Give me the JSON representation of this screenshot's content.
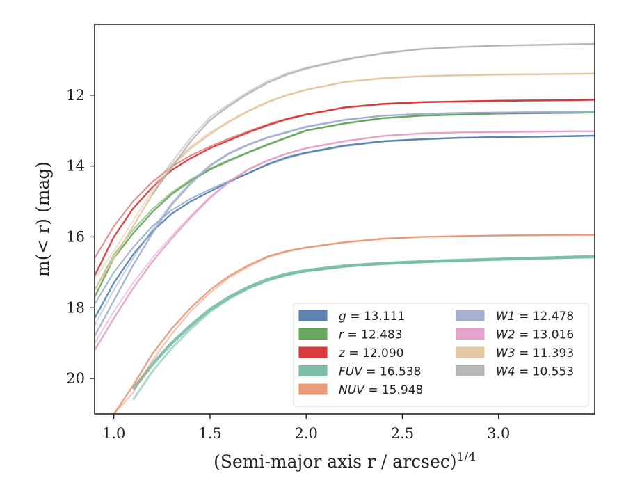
{
  "chart_data": {
    "type": "line",
    "xlabel": "(Semi-major axis r / arcsec)",
    "xlabel_exponent": "1/4",
    "ylabel": "m(< r) (mag)",
    "xlim": [
      0.9,
      3.5
    ],
    "ylim": [
      21.0,
      10.0
    ],
    "y_inverted": true,
    "grid": false,
    "legend_position": "lower-right",
    "xticks": [
      1.0,
      1.5,
      2.0,
      2.5,
      3.0
    ],
    "xtick_labels": [
      "1.0",
      "1.5",
      "2.0",
      "2.5",
      "3.0"
    ],
    "yticks": [
      12,
      14,
      16,
      18,
      20
    ],
    "ytick_labels": [
      "12",
      "14",
      "16",
      "18",
      "20"
    ],
    "series": [
      {
        "name": "g",
        "value_label": "13.111",
        "color": "#4c78a8",
        "x": [
          0.9,
          1.0,
          1.1,
          1.2,
          1.3,
          1.4,
          1.5,
          1.6,
          1.7,
          1.8,
          1.9,
          2.0,
          2.2,
          2.4,
          2.6,
          2.8,
          3.0,
          3.2,
          3.4,
          3.5
        ],
        "y": [
          18.3,
          17.3,
          16.5,
          15.85,
          15.35,
          15.0,
          14.72,
          14.45,
          14.2,
          13.95,
          13.75,
          13.62,
          13.42,
          13.3,
          13.24,
          13.2,
          13.18,
          13.17,
          13.15,
          13.14
        ],
        "y_alt": [
          17.9,
          17.0,
          16.3,
          15.7,
          15.25,
          14.92,
          14.66,
          14.42,
          14.2,
          13.97,
          13.78,
          13.64,
          13.44,
          13.31,
          13.25,
          13.21,
          13.19,
          13.17,
          13.16,
          13.15
        ]
      },
      {
        "name": "r",
        "value_label": "12.483",
        "color": "#59a14f",
        "x": [
          0.9,
          1.0,
          1.1,
          1.2,
          1.3,
          1.4,
          1.5,
          1.6,
          1.7,
          1.8,
          1.9,
          2.0,
          2.2,
          2.4,
          2.6,
          2.8,
          3.0,
          3.2,
          3.4,
          3.5
        ],
        "y": [
          17.7,
          16.6,
          15.9,
          15.3,
          14.8,
          14.42,
          14.1,
          13.85,
          13.62,
          13.4,
          13.2,
          13.0,
          12.8,
          12.65,
          12.58,
          12.55,
          12.52,
          12.51,
          12.5,
          12.49
        ],
        "y_alt": [
          17.5,
          16.5,
          15.8,
          15.22,
          14.75,
          14.38,
          14.07,
          13.82,
          13.6,
          13.38,
          13.18,
          12.99,
          12.79,
          12.64,
          12.58,
          12.55,
          12.52,
          12.5,
          12.49,
          12.48
        ]
      },
      {
        "name": "z",
        "value_label": "12.090",
        "color": "#d62728",
        "x": [
          0.9,
          1.0,
          1.1,
          1.2,
          1.3,
          1.4,
          1.5,
          1.6,
          1.7,
          1.8,
          1.9,
          2.0,
          2.2,
          2.4,
          2.6,
          2.8,
          3.0,
          3.2,
          3.4,
          3.5
        ],
        "y": [
          17.1,
          16.0,
          15.2,
          14.6,
          14.12,
          13.78,
          13.5,
          13.27,
          13.05,
          12.85,
          12.68,
          12.55,
          12.35,
          12.25,
          12.2,
          12.18,
          12.16,
          12.15,
          12.14,
          12.13
        ],
        "y_alt": [
          16.6,
          15.7,
          15.0,
          14.45,
          14.02,
          13.7,
          13.45,
          13.22,
          13.02,
          12.82,
          12.66,
          12.54,
          12.34,
          12.24,
          12.19,
          12.17,
          12.15,
          12.14,
          12.14,
          12.13
        ]
      },
      {
        "name": "FUV",
        "value_label": "16.538",
        "color": "#6fb8a0",
        "x": [
          1.1,
          1.2,
          1.3,
          1.4,
          1.5,
          1.6,
          1.7,
          1.8,
          1.9,
          2.0,
          2.2,
          2.4,
          2.6,
          2.8,
          3.0,
          3.2,
          3.4,
          3.5
        ],
        "y": [
          20.3,
          19.6,
          19.0,
          18.5,
          18.05,
          17.7,
          17.42,
          17.2,
          17.05,
          16.95,
          16.82,
          16.75,
          16.7,
          16.66,
          16.63,
          16.6,
          16.57,
          16.56
        ],
        "y_alt": [
          20.6,
          19.8,
          19.15,
          18.6,
          18.12,
          17.75,
          17.46,
          17.24,
          17.08,
          16.97,
          16.84,
          16.76,
          16.71,
          16.67,
          16.63,
          16.6,
          16.57,
          16.56
        ]
      },
      {
        "name": "NUV",
        "value_label": "15.948",
        "color": "#e8906e",
        "x": [
          1.0,
          1.1,
          1.2,
          1.3,
          1.4,
          1.5,
          1.6,
          1.7,
          1.8,
          1.9,
          2.0,
          2.2,
          2.4,
          2.6,
          2.8,
          3.0,
          3.2,
          3.4,
          3.5
        ],
        "y": [
          21.0,
          20.2,
          19.3,
          18.6,
          18.0,
          17.5,
          17.1,
          16.8,
          16.55,
          16.4,
          16.3,
          16.15,
          16.05,
          16.0,
          15.98,
          15.96,
          15.95,
          15.94,
          15.94
        ],
        "y_alt": [
          21.0,
          20.4,
          19.5,
          18.75,
          18.1,
          17.58,
          17.15,
          16.84,
          16.58,
          16.42,
          16.31,
          16.16,
          16.06,
          16.0,
          15.98,
          15.97,
          15.96,
          15.95,
          15.95
        ]
      },
      {
        "name": "W1",
        "value_label": "12.478",
        "color": "#9aa8cc",
        "x": [
          0.9,
          1.0,
          1.1,
          1.2,
          1.3,
          1.4,
          1.5,
          1.6,
          1.7,
          1.8,
          1.9,
          2.0,
          2.2,
          2.4,
          2.6,
          2.8,
          3.0,
          3.2,
          3.4,
          3.5
        ],
        "y": [
          18.8,
          17.8,
          16.8,
          15.9,
          15.1,
          14.5,
          14.0,
          13.65,
          13.4,
          13.2,
          13.05,
          12.9,
          12.7,
          12.58,
          12.53,
          12.5,
          12.49,
          12.48,
          12.48,
          12.47
        ],
        "y_alt": [
          18.5,
          17.5,
          16.6,
          15.8,
          15.05,
          14.45,
          13.97,
          13.62,
          13.38,
          13.18,
          13.03,
          12.88,
          12.69,
          12.58,
          12.53,
          12.5,
          12.49,
          12.48,
          12.47,
          12.47
        ]
      },
      {
        "name": "W2",
        "value_label": "13.016",
        "color": "#e39ac6",
        "x": [
          0.9,
          1.0,
          1.1,
          1.2,
          1.3,
          1.4,
          1.5,
          1.6,
          1.7,
          1.8,
          1.9,
          2.0,
          2.2,
          2.4,
          2.6,
          2.8,
          3.0,
          3.2,
          3.4,
          3.5
        ],
        "y": [
          19.2,
          18.3,
          17.45,
          16.7,
          16.05,
          15.45,
          14.9,
          14.45,
          14.1,
          13.85,
          13.65,
          13.5,
          13.3,
          13.15,
          13.08,
          13.05,
          13.04,
          13.03,
          13.02,
          13.02
        ],
        "y_alt": [
          19.0,
          18.1,
          17.3,
          16.6,
          15.98,
          15.4,
          14.87,
          14.43,
          14.08,
          13.83,
          13.64,
          13.49,
          13.29,
          13.15,
          13.08,
          13.05,
          13.04,
          13.03,
          13.02,
          13.02
        ]
      },
      {
        "name": "W3",
        "value_label": "11.393",
        "color": "#e2c39a",
        "x": [
          0.9,
          1.0,
          1.1,
          1.2,
          1.3,
          1.4,
          1.5,
          1.6,
          1.7,
          1.8,
          1.9,
          2.0,
          2.2,
          2.4,
          2.6,
          2.8,
          3.0,
          3.2,
          3.4,
          3.5
        ],
        "y": [
          17.5,
          16.6,
          15.7,
          14.8,
          14.0,
          13.5,
          13.1,
          12.75,
          12.45,
          12.2,
          12.0,
          11.85,
          11.63,
          11.52,
          11.47,
          11.44,
          11.42,
          11.41,
          11.4,
          11.39
        ],
        "y_alt": [
          17.2,
          16.4,
          15.55,
          14.7,
          13.95,
          13.45,
          13.05,
          12.72,
          12.43,
          12.18,
          11.99,
          11.84,
          11.62,
          11.51,
          11.46,
          11.43,
          11.41,
          11.4,
          11.39,
          11.39
        ]
      },
      {
        "name": "W4",
        "value_label": "10.553",
        "color": "#b0b0b0",
        "x": [
          1.2,
          1.3,
          1.4,
          1.5,
          1.6,
          1.7,
          1.8,
          1.9,
          2.0,
          2.2,
          2.4,
          2.6,
          2.8,
          3.0,
          3.2,
          3.4,
          3.5
        ],
        "y": [
          14.8,
          14.05,
          13.3,
          12.7,
          12.3,
          11.95,
          11.65,
          11.42,
          11.25,
          11.0,
          10.82,
          10.7,
          10.64,
          10.6,
          10.58,
          10.56,
          10.55
        ],
        "y_alt": [
          14.6,
          13.9,
          13.2,
          12.62,
          12.25,
          11.9,
          11.6,
          11.38,
          11.22,
          10.98,
          10.8,
          10.69,
          10.63,
          10.6,
          10.58,
          10.57,
          10.56
        ]
      }
    ],
    "legend": [
      {
        "name": "g",
        "value": "13.111"
      },
      {
        "name": "r",
        "value": "12.483"
      },
      {
        "name": "z",
        "value": "12.090"
      },
      {
        "name": "FUV",
        "value": "16.538"
      },
      {
        "name": "NUV",
        "value": "15.948"
      },
      {
        "name": "W1",
        "value": "12.478"
      },
      {
        "name": "W2",
        "value": "13.016"
      },
      {
        "name": "W3",
        "value": "11.393"
      },
      {
        "name": "W4",
        "value": "10.553"
      }
    ]
  }
}
